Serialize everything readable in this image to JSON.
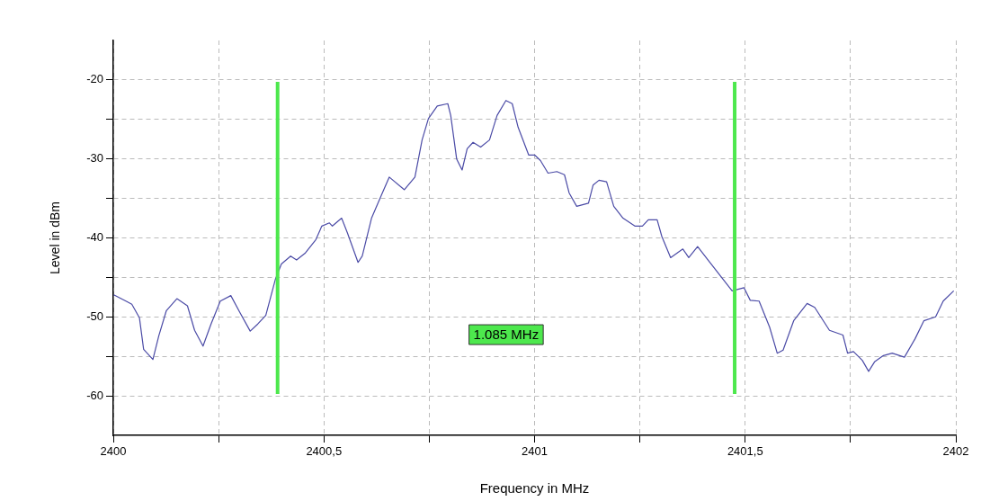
{
  "chart_data": {
    "type": "line",
    "xlabel": "Frequency in MHz",
    "ylabel": "Level in dBm",
    "xlim": [
      2400,
      2402
    ],
    "xticks": [
      2400,
      {
        "value": 2400.25,
        "label": null
      },
      {
        "value": 2400.5,
        "label": "2400,5"
      },
      {
        "value": 2400.75,
        "label": null
      },
      2401,
      {
        "value": 2401.25,
        "label": null
      },
      {
        "value": 2401.5,
        "label": "2401,5"
      },
      {
        "value": 2401.75,
        "label": null
      },
      2402
    ],
    "ylim": [
      -65,
      -15
    ],
    "yticks": [
      -60,
      {
        "value": -55,
        "label": null
      },
      -50,
      {
        "value": -45,
        "label": null
      },
      -40,
      {
        "value": -35,
        "label": null
      },
      -30,
      {
        "value": -25,
        "label": null
      },
      -20
    ],
    "grid": true,
    "legend": false,
    "marker": "none",
    "line_style": "solid",
    "series": [
      {
        "color": "#4b4ba6",
        "x": [
          2400.001,
          2400.03,
          2400.044,
          2400.062,
          2400.072,
          2400.094,
          2400.108,
          2400.126,
          2400.151,
          2400.176,
          2400.193,
          2400.213,
          2400.232,
          2400.254,
          2400.279,
          2400.3,
          2400.325,
          2400.343,
          2400.362,
          2400.385,
          2400.399,
          2400.421,
          2400.435,
          2400.456,
          2400.481,
          2400.495,
          2400.513,
          2400.52,
          2400.542,
          2400.556,
          2400.581,
          2400.591,
          2400.613,
          2400.638,
          2400.655,
          2400.691,
          2400.716,
          2400.733,
          2400.748,
          2400.769,
          2400.794,
          2400.801,
          2400.815,
          2400.828,
          2400.84,
          2400.854,
          2400.872,
          2400.893,
          2400.911,
          2400.932,
          2400.947,
          2400.961,
          2400.986,
          2401,
          2401.014,
          2401.032,
          2401.053,
          2401.071,
          2401.082,
          2401.1,
          2401.128,
          2401.139,
          2401.153,
          2401.171,
          2401.188,
          2401.21,
          2401.238,
          2401.256,
          2401.27,
          2401.291,
          2401.302,
          2401.323,
          2401.352,
          2401.366,
          2401.387,
          2401.416,
          2401.441,
          2401.469,
          2401.497,
          2401.512,
          2401.533,
          2401.558,
          2401.576,
          2401.59,
          2401.615,
          2401.647,
          2401.665,
          2401.7,
          2401.732,
          2401.743,
          2401.757,
          2401.778,
          2401.793,
          2401.807,
          2401.828,
          2401.849,
          2401.878,
          2401.903,
          2401.924,
          2401.952,
          2401.97,
          2401.995
        ],
        "values": [
          -47.2,
          -48.0,
          -48.4,
          -50.1,
          -54.1,
          -55.4,
          -52.4,
          -49.2,
          -47.7,
          -48.6,
          -51.7,
          -53.7,
          -50.9,
          -48.0,
          -47.3,
          -49.4,
          -51.8,
          -50.9,
          -49.8,
          -45.2,
          -43.3,
          -42.3,
          -42.8,
          -41.9,
          -40.2,
          -38.5,
          -38.1,
          -38.5,
          -37.5,
          -39.4,
          -43.1,
          -42.3,
          -37.5,
          -34.4,
          -32.3,
          -33.9,
          -32.3,
          -27.6,
          -24.9,
          -23.3,
          -23.0,
          -24.5,
          -30.0,
          -31.4,
          -28.7,
          -27.9,
          -28.5,
          -27.6,
          -24.5,
          -22.6,
          -23.0,
          -26.0,
          -29.5,
          -29.5,
          -30.2,
          -31.8,
          -31.6,
          -32.0,
          -34.3,
          -36.0,
          -35.6,
          -33.3,
          -32.7,
          -32.9,
          -36.0,
          -37.5,
          -38.5,
          -38.5,
          -37.7,
          -37.7,
          -39.8,
          -42.5,
          -41.4,
          -42.5,
          -41.1,
          -43.1,
          -44.8,
          -46.7,
          -46.3,
          -47.9,
          -48.0,
          -51.3,
          -54.6,
          -54.2,
          -50.5,
          -48.3,
          -48.8,
          -51.7,
          -52.3,
          -54.6,
          -54.4,
          -55.5,
          -56.9,
          -55.7,
          -54.9,
          -54.6,
          -55.1,
          -52.8,
          -50.5,
          -50.0,
          -48.0,
          -46.7
        ]
      }
    ],
    "ref_lines": [
      {
        "axis": "x",
        "value": 2400.39,
        "color": "#4de84d"
      },
      {
        "axis": "x",
        "value": 2401.475,
        "color": "#4de84d"
      }
    ],
    "annotations": [
      "1.085 MHz"
    ]
  }
}
